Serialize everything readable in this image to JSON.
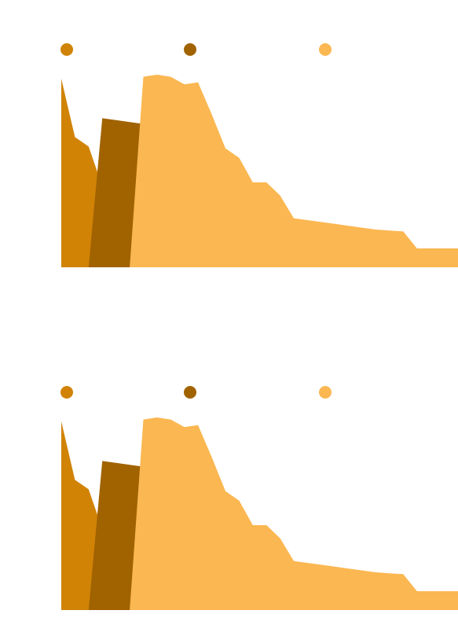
{
  "chart_data": [
    {
      "type": "area",
      "title": "",
      "xlabel": "",
      "ylabel": "",
      "grid": false,
      "legend": "top",
      "xlim": [
        0,
        29
      ],
      "ylim": [
        0,
        1
      ],
      "x": [
        0,
        1,
        2,
        3,
        4,
        5,
        6,
        7,
        8,
        9,
        10,
        11,
        12,
        13,
        14,
        15,
        16,
        17,
        18,
        19,
        20,
        21,
        22,
        23,
        24,
        25,
        26,
        27,
        28,
        29
      ],
      "series": [
        {
          "color": "#d18306",
          "values": [
            1.0,
            0.69,
            0.64,
            0.43,
            0.32,
            0.25,
            0.1,
            0.07,
            0.08,
            0.05,
            0.03,
            0.02,
            0.01,
            0.005,
            0.003,
            0.002,
            0.002,
            0.001,
            0.001,
            0.001,
            0.001,
            0.001,
            0.001,
            0.001,
            0.001,
            0.001,
            0.001,
            0.001,
            0.001,
            0.001
          ]
        },
        {
          "color": "#a16300",
          "values": [
            0.0,
            0.0,
            0.0,
            0.79,
            0.78,
            0.77,
            0.76,
            0.79,
            0.74,
            0.45,
            0.36,
            0.31,
            0.17,
            0.1,
            0.11,
            0.1,
            0.1,
            0.09,
            0.07,
            0.06,
            0.045,
            0.04,
            0.035,
            0.035,
            0.035,
            0.035,
            0.0,
            0.0,
            0.0,
            0.0
          ]
        },
        {
          "color": "#fbb751",
          "values": [
            0.0,
            0.0,
            0.0,
            0.0,
            0.0,
            0.0,
            1.01,
            1.04,
            1.01,
            0.97,
            0.98,
            0.81,
            0.63,
            0.58,
            0.45,
            0.45,
            0.38,
            0.26,
            0.25,
            0.24,
            0.23,
            0.22,
            0.21,
            0.2,
            0.195,
            0.19,
            0.1,
            0.1,
            0.1,
            0.1
          ]
        }
      ]
    },
    {
      "type": "area",
      "title": "",
      "xlabel": "",
      "ylabel": "",
      "grid": false,
      "legend": "top",
      "xlim": [
        0,
        29
      ],
      "ylim": [
        0,
        1
      ],
      "x": [
        0,
        1,
        2,
        3,
        4,
        5,
        6,
        7,
        8,
        9,
        10,
        11,
        12,
        13,
        14,
        15,
        16,
        17,
        18,
        19,
        20,
        21,
        22,
        23,
        24,
        25,
        26,
        27,
        28,
        29
      ],
      "series": [
        {
          "color": "#d18306",
          "values": [
            1.0,
            0.69,
            0.64,
            0.43,
            0.32,
            0.25,
            0.1,
            0.07,
            0.08,
            0.05,
            0.03,
            0.02,
            0.01,
            0.005,
            0.003,
            0.002,
            0.002,
            0.001,
            0.001,
            0.001,
            0.001,
            0.001,
            0.001,
            0.001,
            0.001,
            0.001,
            0.001,
            0.001,
            0.001,
            0.001
          ]
        },
        {
          "color": "#a16300",
          "values": [
            0.0,
            0.0,
            0.0,
            0.79,
            0.78,
            0.77,
            0.76,
            0.79,
            0.74,
            0.45,
            0.36,
            0.31,
            0.17,
            0.1,
            0.11,
            0.1,
            0.1,
            0.09,
            0.07,
            0.06,
            0.045,
            0.04,
            0.035,
            0.035,
            0.035,
            0.035,
            0.0,
            0.0,
            0.0,
            0.0
          ]
        },
        {
          "color": "#fbb751",
          "values": [
            0.0,
            0.0,
            0.0,
            0.0,
            0.0,
            0.0,
            1.01,
            1.04,
            1.01,
            0.97,
            0.98,
            0.81,
            0.63,
            0.58,
            0.45,
            0.45,
            0.38,
            0.26,
            0.25,
            0.24,
            0.23,
            0.22,
            0.21,
            0.2,
            0.195,
            0.19,
            0.1,
            0.1,
            0.1,
            0.1
          ]
        }
      ]
    }
  ]
}
